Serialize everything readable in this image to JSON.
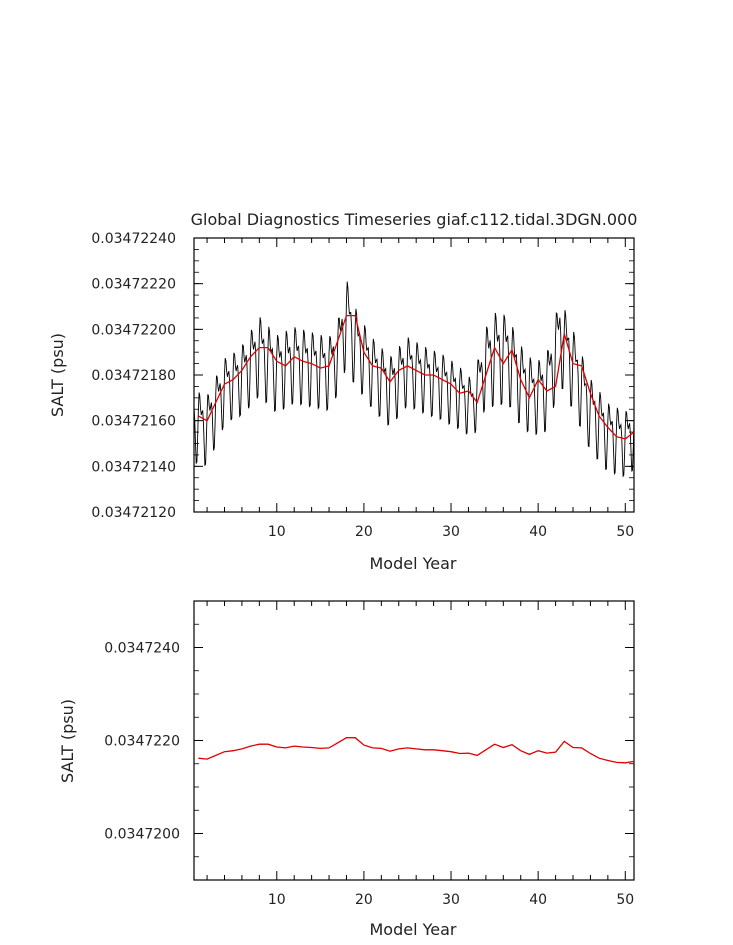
{
  "chart_data": [
    {
      "type": "line",
      "title": "Global Diagnostics Timeseries giaf.c112.tidal.3DGN.000",
      "xlabel": "Model Year",
      "ylabel": "SALT (psu)",
      "xlim": [
        0.5,
        51
      ],
      "ylim": [
        0.0347212,
        0.0347224
      ],
      "xticks": [
        "10",
        "20",
        "30",
        "40",
        "50"
      ],
      "yticks": [
        "0.03472120",
        "0.03472140",
        "0.03472160",
        "0.03472180",
        "0.03472200",
        "0.03472220",
        "0.03472240"
      ],
      "colors": {
        "monthly": "#000000",
        "annual": "#e00000"
      },
      "series": [
        {
          "style": "monthly",
          "color": "#000000",
          "cycle_per_year": true,
          "base": [
            [
              0.5,
              0.0347216
            ],
            [
              2,
              0.03472158
            ],
            [
              4,
              0.03472175
            ],
            [
              6,
              0.0347218
            ],
            [
              8,
              0.03472191
            ],
            [
              10,
              0.03472183
            ],
            [
              12,
              0.03472187
            ],
            [
              14,
              0.03472185
            ],
            [
              16,
              0.03472183
            ],
            [
              17,
              0.0347219
            ],
            [
              18,
              0.03472206
            ],
            [
              19,
              0.03472195
            ],
            [
              21,
              0.03472183
            ],
            [
              23,
              0.03472175
            ],
            [
              25,
              0.03472184
            ],
            [
              27,
              0.0347218
            ],
            [
              29,
              0.03472177
            ],
            [
              31,
              0.03472172
            ],
            [
              32.5,
              0.03472167
            ],
            [
              34,
              0.03472186
            ],
            [
              35,
              0.0347219
            ],
            [
              36.5,
              0.0347219
            ],
            [
              38,
              0.03472178
            ],
            [
              39.5,
              0.03472172
            ],
            [
              41,
              0.03472175
            ],
            [
              42.5,
              0.03472198
            ],
            [
              44,
              0.03472185
            ],
            [
              46,
              0.03472165
            ],
            [
              48,
              0.03472155
            ],
            [
              50,
              0.03472152
            ],
            [
              51,
              0.03472155
            ]
          ],
          "amplitude": [
            [
              0.5,
              2e-07
            ],
            [
              5,
              1.8e-07
            ],
            [
              8,
              2.2e-07
            ],
            [
              17,
              2e-07
            ],
            [
              18,
              2.4e-07
            ],
            [
              20,
              2e-07
            ],
            [
              30,
              1.8e-07
            ],
            [
              32.5,
              1.6e-07
            ],
            [
              35,
              2.6e-07
            ],
            [
              40,
              2e-07
            ],
            [
              42.5,
              2.4e-07
            ],
            [
              46,
              2e-07
            ],
            [
              50,
              1.8e-07
            ],
            [
              51,
              1.8e-07
            ]
          ]
        },
        {
          "style": "annual",
          "color": "#e00000",
          "x": [
            1,
            2,
            3,
            4,
            5,
            6,
            7,
            8,
            9,
            10,
            11,
            12,
            13,
            14,
            15,
            16,
            17,
            18,
            19,
            20,
            21,
            22,
            23,
            24,
            25,
            26,
            27,
            28,
            29,
            30,
            31,
            32,
            33,
            34,
            35,
            36,
            37,
            38,
            39,
            40,
            41,
            42,
            43,
            44,
            45,
            46,
            47,
            48,
            49,
            50,
            51
          ],
          "y": [
            0.03472162,
            0.0347216,
            0.03472168,
            0.03472176,
            0.03472178,
            0.03472182,
            0.03472188,
            0.03472192,
            0.03472192,
            0.03472186,
            0.03472184,
            0.03472188,
            0.03472186,
            0.03472185,
            0.03472183,
            0.03472184,
            0.03472195,
            0.03472206,
            0.03472206,
            0.0347219,
            0.03472184,
            0.03472183,
            0.03472177,
            0.03472182,
            0.03472184,
            0.03472182,
            0.0347218,
            0.0347218,
            0.03472178,
            0.03472176,
            0.03472172,
            0.03472173,
            0.03472168,
            0.0347218,
            0.03472192,
            0.03472185,
            0.03472191,
            0.03472178,
            0.0347217,
            0.03472178,
            0.03472173,
            0.03472175,
            0.03472198,
            0.03472185,
            0.03472184,
            0.03472172,
            0.03472162,
            0.03472157,
            0.03472153,
            0.03472152,
            0.03472155
          ]
        }
      ]
    },
    {
      "type": "line",
      "title": "",
      "xlabel": "Model Year",
      "ylabel": "SALT (psu)",
      "xlim": [
        0.5,
        51
      ],
      "ylim": [
        0.034719,
        0.034725
      ],
      "xticks": [
        "10",
        "20",
        "30",
        "40",
        "50"
      ],
      "yticks": [
        "0.0347200",
        "0.0347220",
        "0.0347240"
      ],
      "colors": {
        "annual": "#e00000"
      },
      "series": [
        {
          "style": "annual",
          "color": "#e00000",
          "x": [
            1,
            2,
            3,
            4,
            5,
            6,
            7,
            8,
            9,
            10,
            11,
            12,
            13,
            14,
            15,
            16,
            17,
            18,
            19,
            20,
            21,
            22,
            23,
            24,
            25,
            26,
            27,
            28,
            29,
            30,
            31,
            32,
            33,
            34,
            35,
            36,
            37,
            38,
            39,
            40,
            41,
            42,
            43,
            44,
            45,
            46,
            47,
            48,
            49,
            50,
            51
          ],
          "y": [
            0.03472162,
            0.0347216,
            0.03472168,
            0.03472176,
            0.03472178,
            0.03472182,
            0.03472188,
            0.03472192,
            0.03472192,
            0.03472186,
            0.03472184,
            0.03472188,
            0.03472186,
            0.03472185,
            0.03472183,
            0.03472184,
            0.03472195,
            0.03472206,
            0.03472206,
            0.0347219,
            0.03472184,
            0.03472183,
            0.03472177,
            0.03472182,
            0.03472184,
            0.03472182,
            0.0347218,
            0.0347218,
            0.03472178,
            0.03472176,
            0.03472172,
            0.03472173,
            0.03472168,
            0.0347218,
            0.03472192,
            0.03472185,
            0.03472191,
            0.03472178,
            0.0347217,
            0.03472178,
            0.03472173,
            0.03472175,
            0.03472198,
            0.03472185,
            0.03472184,
            0.03472172,
            0.03472162,
            0.03472157,
            0.03472153,
            0.03472152,
            0.03472155
          ]
        }
      ]
    }
  ]
}
